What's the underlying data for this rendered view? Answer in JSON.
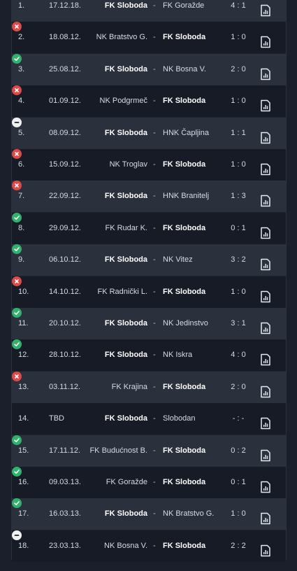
{
  "matches": [
    {
      "num": "1.",
      "result": "win",
      "date": "17.12.18.",
      "home": "FK Sloboda",
      "away": "FK Goražde",
      "score": "4 : 1",
      "home_bold": true
    },
    {
      "num": "2.",
      "result": "loss",
      "date": "18.08.12.",
      "home": "NK Bratstvo G.",
      "away": "FK Sloboda",
      "score": "1 : 0",
      "home_bold": false
    },
    {
      "num": "3.",
      "result": "win",
      "date": "25.08.12.",
      "home": "FK Sloboda",
      "away": "NK Bosna V.",
      "score": "2 : 0",
      "home_bold": true
    },
    {
      "num": "4.",
      "result": "loss",
      "date": "01.09.12.",
      "home": "NK Podgrmeč",
      "away": "FK Sloboda",
      "score": "1 : 0",
      "home_bold": false
    },
    {
      "num": "5.",
      "result": "draw",
      "date": "08.09.12.",
      "home": "FK Sloboda",
      "away": "HNK Čapljina",
      "score": "1 : 1",
      "home_bold": true
    },
    {
      "num": "6.",
      "result": "loss",
      "date": "15.09.12.",
      "home": "NK Troglav",
      "away": "FK Sloboda",
      "score": "1 : 0",
      "home_bold": false
    },
    {
      "num": "7.",
      "result": "loss",
      "date": "22.09.12.",
      "home": "FK Sloboda",
      "away": "HNK Branitelj",
      "score": "1 : 3",
      "home_bold": true
    },
    {
      "num": "8.",
      "result": "win",
      "date": "29.09.12.",
      "home": "FK Rudar K.",
      "away": "FK Sloboda",
      "score": "0 : 1",
      "home_bold": false
    },
    {
      "num": "9.",
      "result": "win",
      "date": "06.10.12.",
      "home": "FK Sloboda",
      "away": "NK Vitez",
      "score": "3 : 2",
      "home_bold": true
    },
    {
      "num": "10.",
      "result": "loss",
      "date": "14.10.12.",
      "home": "FK Radnički L.",
      "away": "FK Sloboda",
      "score": "1 : 0",
      "home_bold": false
    },
    {
      "num": "11.",
      "result": "win",
      "date": "20.10.12.",
      "home": "FK Sloboda",
      "away": "NK Jedinstvo",
      "score": "3 : 1",
      "home_bold": true
    },
    {
      "num": "12.",
      "result": "win",
      "date": "28.10.12.",
      "home": "FK Sloboda",
      "away": "NK Iskra",
      "score": "4 : 0",
      "home_bold": true
    },
    {
      "num": "13.",
      "result": "loss",
      "date": "03.11.12.",
      "home": "FK Krajina",
      "away": "FK Sloboda",
      "score": "2 : 0",
      "home_bold": false
    },
    {
      "num": "14.",
      "result": "none",
      "date": "TBD",
      "home": "FK Sloboda",
      "away": "Slobodan",
      "score": "- : -",
      "home_bold": true
    },
    {
      "num": "15.",
      "result": "win",
      "date": "17.11.12.",
      "home": "FK Budućnost B.",
      "away": "FK Sloboda",
      "score": "0 : 2",
      "home_bold": false
    },
    {
      "num": "16.",
      "result": "win",
      "date": "09.03.13.",
      "home": "FK Goražde",
      "away": "FK Sloboda",
      "score": "0 : 1",
      "home_bold": false
    },
    {
      "num": "17.",
      "result": "win",
      "date": "16.03.13.",
      "home": "FK Sloboda",
      "away": "NK Bratstvo G.",
      "score": "1 : 0",
      "home_bold": true
    },
    {
      "num": "18.",
      "result": "draw",
      "date": "23.03.13.",
      "home": "NK Bosna V.",
      "away": "FK Sloboda",
      "score": "2 : 2",
      "home_bold": false
    }
  ],
  "dash": "-",
  "icons": {
    "win": "check-icon",
    "loss": "x-icon",
    "draw": "minus-icon",
    "stats": "stats-icon"
  },
  "colors": {
    "win": "#2fb36a",
    "loss": "#e14848",
    "draw": "#f1f1f1"
  }
}
